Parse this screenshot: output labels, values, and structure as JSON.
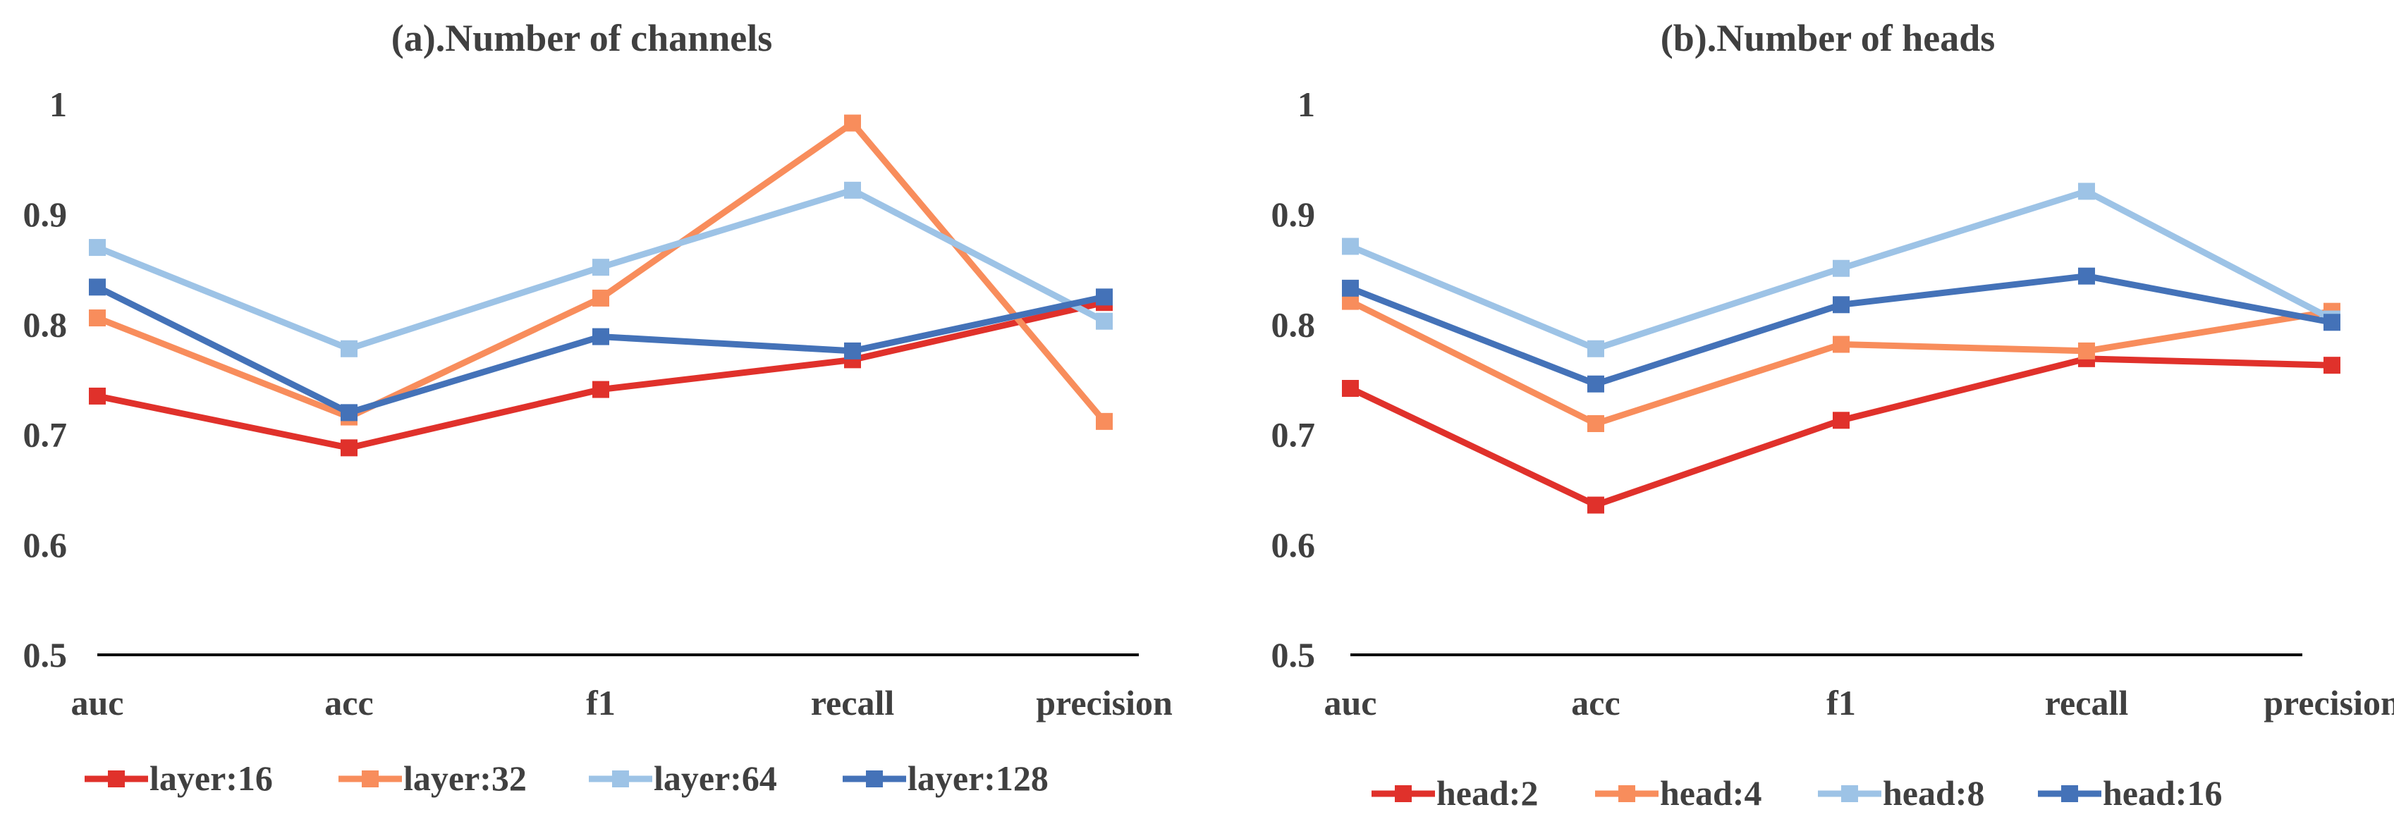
{
  "chart_data": [
    {
      "type": "line",
      "title": "(a).Number of channels",
      "xlabel": "",
      "ylabel": "",
      "categories": [
        "auc",
        "acc",
        "f1",
        "recall",
        "precision"
      ],
      "ylim": [
        0.5,
        1
      ],
      "yticks": [
        0.5,
        0.6,
        0.7,
        0.8,
        0.9,
        1
      ],
      "ytick_labels": [
        "0.5",
        "0.6",
        "0.7",
        "0.8",
        "0.9",
        "1"
      ],
      "grid": false,
      "legend_position": "bottom",
      "series": [
        {
          "name": "layer:16",
          "color": "#E0312B",
          "values": [
            0.735,
            0.688,
            0.741,
            0.768,
            0.82
          ]
        },
        {
          "name": "layer:32",
          "color": "#F88D5C",
          "values": [
            0.806,
            0.716,
            0.824,
            0.983,
            0.712
          ]
        },
        {
          "name": "layer:64",
          "color": "#9DC3E6",
          "values": [
            0.87,
            0.778,
            0.852,
            0.922,
            0.803
          ]
        },
        {
          "name": "layer:128",
          "color": "#4472B8",
          "values": [
            0.834,
            0.72,
            0.789,
            0.776,
            0.825
          ]
        }
      ]
    },
    {
      "type": "line",
      "title": "(b).Number of heads",
      "xlabel": "",
      "ylabel": "",
      "categories": [
        "auc",
        "acc",
        "f1",
        "recall",
        "precision"
      ],
      "ylim": [
        0.5,
        1
      ],
      "yticks": [
        0.5,
        0.6,
        0.7,
        0.8,
        0.9,
        1
      ],
      "ytick_labels": [
        "0.5",
        "0.6",
        "0.7",
        "0.8",
        "0.9",
        "1"
      ],
      "grid": false,
      "legend_position": "bottom",
      "series": [
        {
          "name": "head:2",
          "color": "#E0312B",
          "values": [
            0.742,
            0.636,
            0.713,
            0.769,
            0.763
          ]
        },
        {
          "name": "head:4",
          "color": "#F88D5C",
          "values": [
            0.821,
            0.71,
            0.782,
            0.776,
            0.812
          ]
        },
        {
          "name": "head:8",
          "color": "#9DC3E6",
          "values": [
            0.871,
            0.778,
            0.851,
            0.921,
            0.805
          ]
        },
        {
          "name": "head:16",
          "color": "#4472B8",
          "values": [
            0.833,
            0.746,
            0.818,
            0.844,
            0.802
          ]
        }
      ]
    }
  ]
}
